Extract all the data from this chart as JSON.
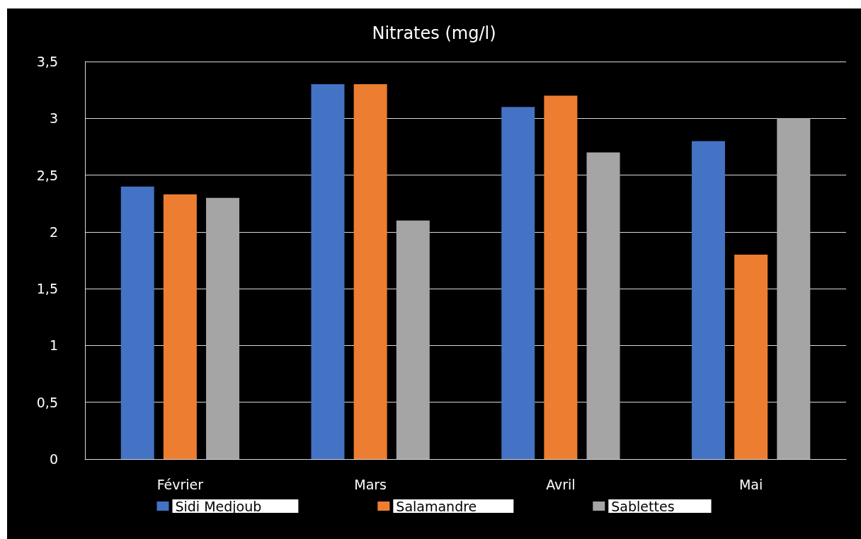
{
  "chart_data": {
    "type": "bar",
    "title": "Nitrates (mg/l)",
    "categories": [
      "Février",
      "Mars",
      "Avril",
      "Mai"
    ],
    "series": [
      {
        "name": "Sidi Medjoub",
        "color": "#4472c4",
        "values": [
          2.4,
          3.3,
          3.1,
          2.8
        ]
      },
      {
        "name": "Salamandre",
        "color": "#ed7d31",
        "values": [
          2.33,
          3.3,
          3.2,
          1.8
        ]
      },
      {
        "name": "Sablettes",
        "color": "#a5a5a5",
        "values": [
          2.3,
          2.1,
          2.7,
          3.0
        ]
      }
    ],
    "ylim": [
      0,
      3.5
    ],
    "yticks": [
      0,
      {
        "value": 0.5,
        "label": "0,5"
      },
      1,
      {
        "value": 1.5,
        "label": "1,5"
      },
      2,
      {
        "value": 2.5,
        "label": "2,5"
      },
      3,
      {
        "value": 3.5,
        "label": "3,5"
      }
    ],
    "grid": "y",
    "legend": "bottom"
  }
}
